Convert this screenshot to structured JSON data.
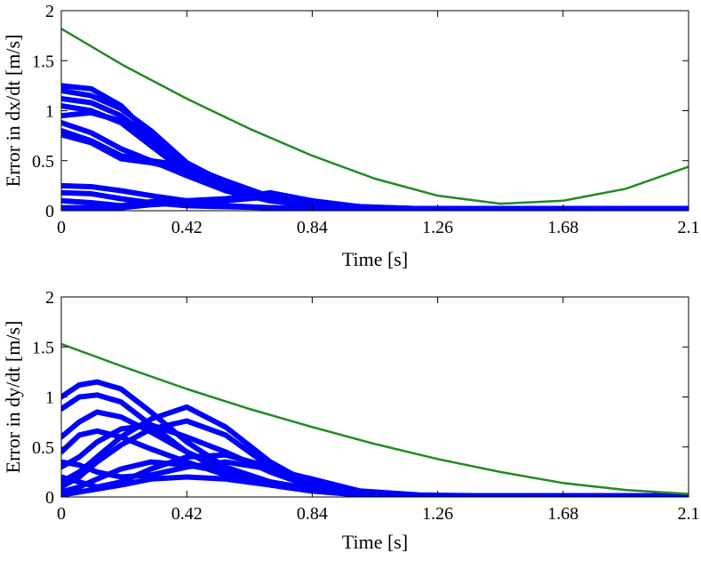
{
  "chart_data": [
    {
      "type": "line",
      "title": "",
      "xlabel": "Time [s]",
      "ylabel": "Error in dx/dt [m/s]",
      "xlim": [
        0,
        2.1
      ],
      "ylim": [
        0,
        2
      ],
      "xticks": [
        0,
        0.42,
        0.84,
        1.26,
        1.68,
        2.1
      ],
      "xtick_labels": [
        "0",
        "0.42",
        "0.84",
        "1.26",
        "1.68",
        "2.1"
      ],
      "yticks": [
        0,
        0.5,
        1,
        1.5,
        2
      ],
      "ytick_labels": [
        "0",
        "0.5",
        "1",
        "1.5",
        "2"
      ],
      "grid": false,
      "legend": "none",
      "series": [
        {
          "color": "#228B22",
          "x": [
            0,
            0.21,
            0.42,
            0.63,
            0.84,
            1.05,
            1.26,
            1.47,
            1.68,
            1.89,
            2.1
          ],
          "values": [
            1.82,
            1.45,
            1.12,
            0.82,
            0.55,
            0.32,
            0.15,
            0.07,
            0.1,
            0.22,
            0.44
          ]
        },
        {
          "color": "#0000FF",
          "x": [
            0,
            0.1,
            0.2,
            0.3,
            0.42,
            0.55,
            0.7,
            0.84,
            1.0,
            1.2,
            1.5,
            2.1
          ],
          "values": [
            1.25,
            1.22,
            1.05,
            0.75,
            0.45,
            0.25,
            0.12,
            0.06,
            0.03,
            0.02,
            0.02,
            0.02
          ]
        },
        {
          "color": "#0000FF",
          "x": [
            0,
            0.1,
            0.2,
            0.3,
            0.42,
            0.55,
            0.7,
            0.84,
            1.0,
            1.2,
            1.5,
            2.1
          ],
          "values": [
            1.2,
            1.15,
            1.02,
            0.8,
            0.48,
            0.28,
            0.13,
            0.06,
            0.03,
            0.02,
            0.02,
            0.02
          ]
        },
        {
          "color": "#0000FF",
          "x": [
            0,
            0.1,
            0.2,
            0.3,
            0.42,
            0.55,
            0.7,
            0.84,
            1.0,
            1.2,
            1.5,
            2.1
          ],
          "values": [
            1.12,
            1.08,
            0.95,
            0.72,
            0.42,
            0.24,
            0.11,
            0.05,
            0.03,
            0.02,
            0.02,
            0.02
          ]
        },
        {
          "color": "#0000FF",
          "x": [
            0,
            0.1,
            0.2,
            0.3,
            0.42,
            0.55,
            0.7,
            0.84,
            1.0,
            1.2,
            1.5,
            2.1
          ],
          "values": [
            1.05,
            1.0,
            0.88,
            0.65,
            0.38,
            0.2,
            0.1,
            0.05,
            0.03,
            0.02,
            0.02,
            0.02
          ]
        },
        {
          "color": "#0000FF",
          "x": [
            0,
            0.1,
            0.2,
            0.3,
            0.42,
            0.55,
            0.7,
            0.84,
            1.0,
            1.2,
            1.5,
            2.1
          ],
          "values": [
            0.95,
            0.98,
            0.9,
            0.7,
            0.4,
            0.22,
            0.1,
            0.05,
            0.03,
            0.02,
            0.02,
            0.02
          ]
        },
        {
          "color": "#0000FF",
          "x": [
            0,
            0.1,
            0.2,
            0.3,
            0.42,
            0.55,
            0.7,
            0.84,
            1.0,
            1.2,
            1.5,
            2.1
          ],
          "values": [
            0.88,
            0.78,
            0.62,
            0.5,
            0.35,
            0.2,
            0.1,
            0.05,
            0.03,
            0.02,
            0.02,
            0.02
          ]
        },
        {
          "color": "#0000FF",
          "x": [
            0,
            0.1,
            0.2,
            0.3,
            0.42,
            0.55,
            0.7,
            0.84,
            1.0,
            1.2,
            1.5,
            2.1
          ],
          "values": [
            0.8,
            0.7,
            0.55,
            0.5,
            0.45,
            0.3,
            0.14,
            0.06,
            0.03,
            0.02,
            0.02,
            0.02
          ]
        },
        {
          "color": "#0000FF",
          "x": [
            0,
            0.1,
            0.2,
            0.3,
            0.42,
            0.55,
            0.7,
            0.84,
            1.0,
            1.2,
            1.5,
            2.1
          ],
          "values": [
            0.76,
            0.68,
            0.52,
            0.48,
            0.4,
            0.25,
            0.12,
            0.05,
            0.03,
            0.02,
            0.02,
            0.02
          ]
        },
        {
          "color": "#0000FF",
          "x": [
            0,
            0.1,
            0.2,
            0.3,
            0.42,
            0.55,
            0.7,
            0.84,
            1.0,
            1.2,
            1.5,
            2.1
          ],
          "values": [
            0.25,
            0.24,
            0.2,
            0.15,
            0.1,
            0.05,
            0.03,
            0.02,
            0.02,
            0.02,
            0.02,
            0.02
          ]
        },
        {
          "color": "#0000FF",
          "x": [
            0,
            0.1,
            0.2,
            0.3,
            0.42,
            0.55,
            0.7,
            0.84,
            1.0,
            1.2,
            1.5,
            2.1
          ],
          "values": [
            0.18,
            0.17,
            0.12,
            0.08,
            0.05,
            0.04,
            0.03,
            0.02,
            0.02,
            0.02,
            0.02,
            0.02
          ]
        },
        {
          "color": "#0000FF",
          "x": [
            0,
            0.1,
            0.2,
            0.3,
            0.42,
            0.55,
            0.7,
            0.84,
            1.0,
            1.2,
            1.5,
            2.1
          ],
          "values": [
            0.1,
            0.08,
            0.05,
            0.09,
            0.1,
            0.12,
            0.18,
            0.1,
            0.04,
            0.02,
            0.02,
            0.02
          ]
        },
        {
          "color": "#0000FF",
          "x": [
            0,
            0.1,
            0.2,
            0.3,
            0.42,
            0.55,
            0.7,
            0.84,
            1.0,
            1.2,
            1.5,
            2.1
          ],
          "values": [
            0.03,
            0.03,
            0.03,
            0.06,
            0.08,
            0.1,
            0.14,
            0.08,
            0.04,
            0.02,
            0.02,
            0.02
          ]
        }
      ]
    },
    {
      "type": "line",
      "title": "",
      "xlabel": "Time [s]",
      "ylabel": "Error in dy/dt [m/s]",
      "xlim": [
        0,
        2.1
      ],
      "ylim": [
        0,
        2
      ],
      "xticks": [
        0,
        0.42,
        0.84,
        1.26,
        1.68,
        2.1
      ],
      "xtick_labels": [
        "0",
        "0.42",
        "0.84",
        "1.26",
        "1.68",
        "2.1"
      ],
      "yticks": [
        0,
        0.5,
        1,
        1.5,
        2
      ],
      "ytick_labels": [
        "0",
        "0.5",
        "1",
        "1.5",
        "2"
      ],
      "grid": false,
      "legend": "none",
      "series": [
        {
          "color": "#228B22",
          "x": [
            0,
            0.21,
            0.42,
            0.63,
            0.84,
            1.05,
            1.26,
            1.47,
            1.68,
            1.89,
            2.1
          ],
          "values": [
            1.53,
            1.3,
            1.08,
            0.88,
            0.7,
            0.53,
            0.38,
            0.25,
            0.14,
            0.07,
            0.03
          ]
        },
        {
          "color": "#0000FF",
          "x": [
            0,
            0.06,
            0.12,
            0.2,
            0.3,
            0.42,
            0.55,
            0.7,
            0.84,
            1.0,
            1.2,
            1.5,
            2.1
          ],
          "values": [
            1.0,
            1.12,
            1.15,
            1.08,
            0.85,
            0.55,
            0.3,
            0.15,
            0.07,
            0.03,
            0.01,
            0.01,
            0.01
          ]
        },
        {
          "color": "#0000FF",
          "x": [
            0,
            0.06,
            0.12,
            0.2,
            0.3,
            0.42,
            0.55,
            0.7,
            0.84,
            1.0,
            1.2,
            1.5,
            2.1
          ],
          "values": [
            0.88,
            1.0,
            1.02,
            0.95,
            0.72,
            0.45,
            0.25,
            0.12,
            0.06,
            0.03,
            0.01,
            0.01,
            0.01
          ]
        },
        {
          "color": "#0000FF",
          "x": [
            0,
            0.06,
            0.12,
            0.2,
            0.3,
            0.42,
            0.55,
            0.7,
            0.84,
            1.0,
            1.2,
            1.5,
            2.1
          ],
          "values": [
            0.6,
            0.75,
            0.85,
            0.8,
            0.65,
            0.45,
            0.28,
            0.14,
            0.07,
            0.03,
            0.01,
            0.01,
            0.01
          ]
        },
        {
          "color": "#0000FF",
          "x": [
            0,
            0.06,
            0.12,
            0.2,
            0.3,
            0.42,
            0.55,
            0.7,
            0.84,
            1.0,
            1.2,
            1.5,
            2.1
          ],
          "values": [
            0.45,
            0.62,
            0.66,
            0.6,
            0.48,
            0.35,
            0.22,
            0.12,
            0.06,
            0.03,
            0.01,
            0.01,
            0.01
          ]
        },
        {
          "color": "#0000FF",
          "x": [
            0,
            0.06,
            0.12,
            0.2,
            0.3,
            0.42,
            0.55,
            0.7,
            0.84,
            1.0,
            1.2,
            1.5,
            2.1
          ],
          "values": [
            0.15,
            0.25,
            0.4,
            0.6,
            0.78,
            0.9,
            0.7,
            0.35,
            0.12,
            0.04,
            0.01,
            0.01,
            0.01
          ]
        },
        {
          "color": "#0000FF",
          "x": [
            0,
            0.06,
            0.12,
            0.2,
            0.3,
            0.42,
            0.55,
            0.7,
            0.84,
            1.0,
            1.2,
            1.5,
            2.1
          ],
          "values": [
            0.1,
            0.2,
            0.35,
            0.52,
            0.68,
            0.76,
            0.62,
            0.3,
            0.1,
            0.04,
            0.01,
            0.01,
            0.01
          ]
        },
        {
          "color": "#0000FF",
          "x": [
            0,
            0.06,
            0.12,
            0.2,
            0.3,
            0.42,
            0.55,
            0.7,
            0.84,
            1.0,
            1.2,
            1.5,
            2.1
          ],
          "values": [
            0.3,
            0.4,
            0.55,
            0.68,
            0.72,
            0.6,
            0.45,
            0.25,
            0.1,
            0.04,
            0.01,
            0.01,
            0.01
          ]
        },
        {
          "color": "#0000FF",
          "x": [
            0,
            0.06,
            0.12,
            0.2,
            0.3,
            0.42,
            0.55,
            0.7,
            0.84,
            1.0,
            1.2,
            1.5,
            2.1
          ],
          "values": [
            0.35,
            0.32,
            0.25,
            0.2,
            0.22,
            0.3,
            0.35,
            0.28,
            0.18,
            0.06,
            0.02,
            0.01,
            0.01
          ]
        },
        {
          "color": "#0000FF",
          "x": [
            0,
            0.06,
            0.12,
            0.2,
            0.3,
            0.42,
            0.55,
            0.7,
            0.84,
            1.0,
            1.2,
            1.5,
            2.1
          ],
          "values": [
            0.2,
            0.15,
            0.1,
            0.15,
            0.28,
            0.4,
            0.42,
            0.3,
            0.15,
            0.05,
            0.01,
            0.01,
            0.01
          ]
        },
        {
          "color": "#0000FF",
          "x": [
            0,
            0.06,
            0.12,
            0.2,
            0.3,
            0.42,
            0.55,
            0.7,
            0.84,
            1.0,
            1.2,
            1.5,
            2.1
          ],
          "values": [
            0.05,
            0.1,
            0.18,
            0.28,
            0.35,
            0.32,
            0.25,
            0.15,
            0.08,
            0.03,
            0.01,
            0.01,
            0.01
          ]
        },
        {
          "color": "#0000FF",
          "x": [
            0,
            0.06,
            0.12,
            0.2,
            0.3,
            0.42,
            0.55,
            0.7,
            0.84,
            1.0,
            1.2,
            1.5,
            2.1
          ],
          "values": [
            0.02,
            0.05,
            0.08,
            0.12,
            0.18,
            0.2,
            0.18,
            0.12,
            0.06,
            0.02,
            0.01,
            0.01,
            0.01
          ]
        }
      ]
    }
  ]
}
